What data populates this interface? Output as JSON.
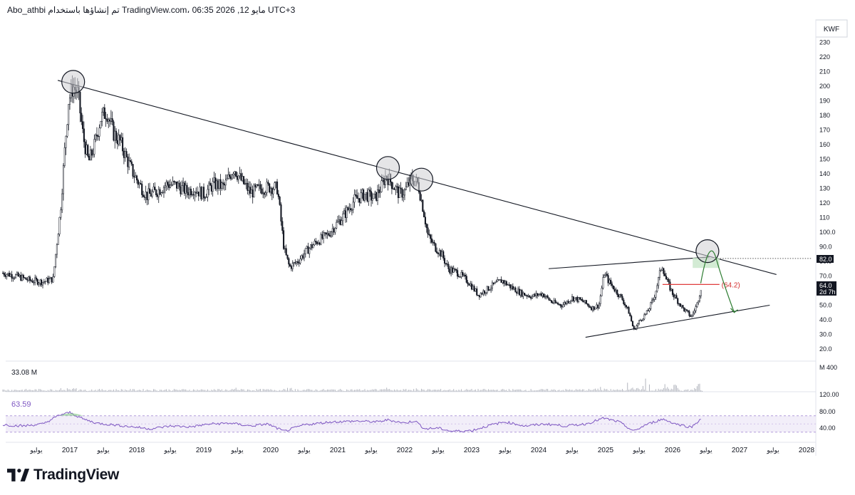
{
  "header": {
    "text": "Abo_athbi تم إنشاؤها باستخدام TradingView.com، 06:35 2026 ,12 مايو UTC+3"
  },
  "brand": {
    "name": "TradingView"
  },
  "colors": {
    "candle": "#131722",
    "volume": "#b2b5be",
    "rsi_line": "#7e57c2",
    "rsi_band": "#ede7f6",
    "target_line": "#e03c3c",
    "target_label": "#d32f2f",
    "projection_arrow": "#2e7d32",
    "target_zone": "#c8e6c9"
  },
  "price_axis": {
    "currency": "KWF",
    "ticks": [
      "230",
      "220",
      "210",
      "200",
      "190",
      "180",
      "170",
      "160",
      "150",
      "140",
      "130",
      "120",
      "110",
      "100.0",
      "90.0",
      "80.0",
      "70.0",
      "60.0",
      "50.0",
      "40.0",
      "30.0",
      "20.0"
    ]
  },
  "badges": {
    "level": "82.0",
    "last_price": "64.0",
    "countdown": "2d 7h"
  },
  "annotations": {
    "target_label": "(64.2)"
  },
  "volume_pane": {
    "value": "33.08 M",
    "scale": "M 400"
  },
  "rsi_pane": {
    "value": "63.59",
    "ticks": [
      "120.00",
      "80.00",
      "40.00"
    ]
  },
  "time_axis": [
    {
      "label": "يوليو",
      "year": 2016.5
    },
    {
      "label": "2017",
      "year": 2017.0
    },
    {
      "label": "يوليو",
      "year": 2017.5
    },
    {
      "label": "2018",
      "year": 2018.0
    },
    {
      "label": "يوليو",
      "year": 2018.5
    },
    {
      "label": "2019",
      "year": 2019.0
    },
    {
      "label": "يوليو",
      "year": 2019.5
    },
    {
      "label": "2020",
      "year": 2020.0
    },
    {
      "label": "يوليو",
      "year": 2020.5
    },
    {
      "label": "2021",
      "year": 2021.0
    },
    {
      "label": "يوليو",
      "year": 2021.5
    },
    {
      "label": "2022",
      "year": 2022.0
    },
    {
      "label": "يوليو",
      "year": 2022.5
    },
    {
      "label": "2023",
      "year": 2023.0
    },
    {
      "label": "يوليو",
      "year": 2023.5
    },
    {
      "label": "2024",
      "year": 2024.0
    },
    {
      "label": "يوليو",
      "year": 2024.5
    },
    {
      "label": "2025",
      "year": 2025.0
    },
    {
      "label": "يوليو",
      "year": 2025.5
    },
    {
      "label": "2026",
      "year": 2026.0
    },
    {
      "label": "يوليو",
      "year": 2026.5
    },
    {
      "label": "2027",
      "year": 2027.0
    },
    {
      "label": "يوليو",
      "year": 2027.5
    },
    {
      "label": "2028",
      "year": 2028.0
    }
  ],
  "chart_data": {
    "type": "line",
    "ylim": [
      15,
      240
    ],
    "xlim": [
      2016.0,
      2028.0
    ],
    "series": [
      {
        "values": [
          [
            2016.0,
            72
          ],
          [
            2016.2,
            70
          ],
          [
            2016.4,
            67
          ],
          [
            2016.6,
            66
          ],
          [
            2016.75,
            68
          ],
          [
            2016.8,
            90
          ],
          [
            2016.86,
            115
          ],
          [
            2016.93,
            160
          ],
          [
            2016.98,
            190
          ],
          [
            2017.05,
            200
          ],
          [
            2017.12,
            195
          ],
          [
            2017.2,
            165
          ],
          [
            2017.28,
            148
          ],
          [
            2017.36,
            158
          ],
          [
            2017.46,
            178
          ],
          [
            2017.55,
            183
          ],
          [
            2017.65,
            168
          ],
          [
            2017.75,
            162
          ],
          [
            2017.85,
            150
          ],
          [
            2017.95,
            140
          ],
          [
            2018.05,
            132
          ],
          [
            2018.15,
            125
          ],
          [
            2018.3,
            128
          ],
          [
            2018.45,
            133
          ],
          [
            2018.6,
            132
          ],
          [
            2018.75,
            128
          ],
          [
            2018.85,
            130
          ],
          [
            2019.0,
            126
          ],
          [
            2019.15,
            133
          ],
          [
            2019.3,
            131
          ],
          [
            2019.45,
            144
          ],
          [
            2019.55,
            136
          ],
          [
            2019.7,
            127
          ],
          [
            2019.85,
            130
          ],
          [
            2020.0,
            131
          ],
          [
            2020.1,
            130
          ],
          [
            2020.2,
            88
          ],
          [
            2020.28,
            76
          ],
          [
            2020.4,
            80
          ],
          [
            2020.55,
            88
          ],
          [
            2020.7,
            94
          ],
          [
            2020.85,
            98
          ],
          [
            2020.95,
            104
          ],
          [
            2021.1,
            112
          ],
          [
            2021.25,
            122
          ],
          [
            2021.4,
            126
          ],
          [
            2021.55,
            123
          ],
          [
            2021.65,
            131
          ],
          [
            2021.72,
            139
          ],
          [
            2021.8,
            134
          ],
          [
            2021.92,
            126
          ],
          [
            2022.0,
            128
          ],
          [
            2022.1,
            137
          ],
          [
            2022.2,
            133
          ],
          [
            2022.28,
            115
          ],
          [
            2022.35,
            97
          ],
          [
            2022.45,
            90
          ],
          [
            2022.55,
            85
          ],
          [
            2022.65,
            75
          ],
          [
            2022.8,
            72
          ],
          [
            2022.95,
            66
          ],
          [
            2023.1,
            57
          ],
          [
            2023.3,
            63
          ],
          [
            2023.45,
            67
          ],
          [
            2023.6,
            62
          ],
          [
            2023.75,
            58
          ],
          [
            2023.9,
            56
          ],
          [
            2024.05,
            58
          ],
          [
            2024.2,
            52
          ],
          [
            2024.35,
            50
          ],
          [
            2024.5,
            55
          ],
          [
            2024.65,
            53
          ],
          [
            2024.8,
            48
          ],
          [
            2024.9,
            50
          ],
          [
            2024.98,
            72
          ],
          [
            2025.05,
            66
          ],
          [
            2025.15,
            60
          ],
          [
            2025.25,
            54
          ],
          [
            2025.35,
            45
          ],
          [
            2025.42,
            33
          ],
          [
            2025.52,
            40
          ],
          [
            2025.62,
            45
          ],
          [
            2025.72,
            55
          ],
          [
            2025.78,
            66
          ],
          [
            2025.84,
            78
          ],
          [
            2025.9,
            68
          ],
          [
            2026.0,
            58
          ],
          [
            2026.15,
            48
          ],
          [
            2026.28,
            42
          ],
          [
            2026.36,
            50
          ],
          [
            2026.43,
            63
          ]
        ]
      }
    ],
    "volume": {
      "baseline": [
        2016.0,
        2026.45
      ],
      "spikes": [
        [
          2016.9,
          60
        ],
        [
          2017.1,
          45
        ],
        [
          2019.5,
          40
        ],
        [
          2020.25,
          35
        ],
        [
          2021.75,
          30
        ],
        [
          2022.2,
          30
        ],
        [
          2024.95,
          50
        ],
        [
          2025.35,
          220
        ],
        [
          2025.5,
          260
        ],
        [
          2025.6,
          180
        ],
        [
          2025.85,
          200
        ],
        [
          2026.0,
          120
        ],
        [
          2026.4,
          140
        ]
      ]
    },
    "rsi": [
      [
        2016.0,
        48
      ],
      [
        2016.3,
        45
      ],
      [
        2016.6,
        50
      ],
      [
        2016.85,
        72
      ],
      [
        2017.0,
        78
      ],
      [
        2017.2,
        62
      ],
      [
        2017.4,
        52
      ],
      [
        2017.7,
        47
      ],
      [
        2018.0,
        42
      ],
      [
        2018.2,
        38
      ],
      [
        2018.5,
        45
      ],
      [
        2018.8,
        43
      ],
      [
        2019.1,
        50
      ],
      [
        2019.4,
        52
      ],
      [
        2019.7,
        45
      ],
      [
        2019.95,
        50
      ],
      [
        2020.2,
        32
      ],
      [
        2020.5,
        48
      ],
      [
        2020.9,
        55
      ],
      [
        2021.3,
        57
      ],
      [
        2021.6,
        55
      ],
      [
        2021.75,
        60
      ],
      [
        2022.0,
        52
      ],
      [
        2022.15,
        58
      ],
      [
        2022.3,
        38
      ],
      [
        2022.5,
        40
      ],
      [
        2022.7,
        32
      ],
      [
        2023.0,
        34
      ],
      [
        2023.3,
        48
      ],
      [
        2023.5,
        55
      ],
      [
        2023.8,
        45
      ],
      [
        2024.1,
        50
      ],
      [
        2024.4,
        45
      ],
      [
        2024.7,
        50
      ],
      [
        2024.97,
        64
      ],
      [
        2025.2,
        55
      ],
      [
        2025.42,
        32
      ],
      [
        2025.6,
        48
      ],
      [
        2025.85,
        62
      ],
      [
        2026.05,
        50
      ],
      [
        2026.28,
        42
      ],
      [
        2026.43,
        64
      ]
    ],
    "trendlines": [
      {
        "from": [
          2016.82,
          204
        ],
        "to": [
          2027.55,
          71
        ]
      },
      {
        "from": [
          2024.15,
          75
        ],
        "to": [
          2026.55,
          83
        ]
      },
      {
        "from": [
          2024.7,
          28
        ],
        "to": [
          2027.45,
          50
        ]
      }
    ],
    "circles": [
      [
        2017.05,
        203
      ],
      [
        2021.75,
        144
      ],
      [
        2022.25,
        136
      ],
      [
        2026.52,
        87
      ]
    ]
  }
}
